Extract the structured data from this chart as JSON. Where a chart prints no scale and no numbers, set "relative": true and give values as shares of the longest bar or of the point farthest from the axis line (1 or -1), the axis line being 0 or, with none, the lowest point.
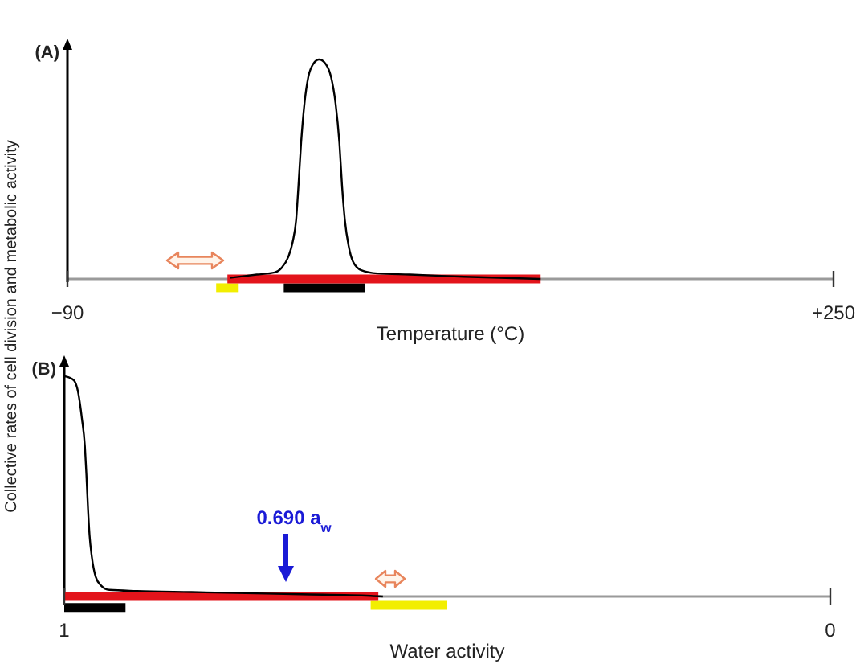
{
  "chart_data": [
    {
      "type": "line",
      "title": "(A)",
      "xlabel": "Temperature (°C)",
      "ylabel": "Collective rates of cell division and metabolic activity",
      "relative": true,
      "marker": "none",
      "series": [
        {
          "color": "#000000",
          "x": [
            -18,
            -6,
            2,
            5,
            8,
            10,
            11.5,
            12.5,
            13.7,
            15.2,
            16.9,
            19.1,
            21.7,
            24.6,
            27,
            29,
            30.7,
            31.9,
            33.1,
            34.8,
            36.7,
            40.4,
            47.6,
            62,
            86,
            120
          ],
          "values": [
            0.005,
            0.02,
            0.03,
            0.05,
            0.1,
            0.17,
            0.27,
            0.42,
            0.62,
            0.8,
            0.92,
            0.98,
            1,
            0.98,
            0.92,
            0.8,
            0.62,
            0.42,
            0.27,
            0.15,
            0.08,
            0.04,
            0.025,
            0.02,
            0.01,
            0
          ]
        },
        {
          "color": "#e3141b",
          "x": [
            -19,
            120
          ],
          "values": [
            0,
            0
          ]
        },
        {
          "color": "#000000",
          "x": [
            6,
            42
          ],
          "values": [
            -0.04,
            -0.04
          ]
        },
        {
          "color": "#f2ee00",
          "x": [
            -24,
            -14
          ],
          "values": [
            -0.04,
            -0.04
          ]
        }
      ],
      "xlim": [
        -90,
        250
      ],
      "xticks": [
        {
          "value": -90,
          "label": "−90"
        },
        {
          "value": 250,
          "label": "+250"
        }
      ]
    },
    {
      "type": "line",
      "title": "(B)",
      "xlabel": "Water activity",
      "relative": true,
      "marker": "none",
      "series": [
        {
          "color": "#000000",
          "x": [
            1,
            0.994,
            0.987,
            0.982,
            0.977,
            0.973,
            0.971,
            0.969,
            0.967,
            0.964,
            0.959,
            0.952,
            0.941,
            0.905,
            0.834,
            0.763,
            0.691,
            0.6,
            0.584
          ],
          "values": [
            1,
            0.995,
            0.98,
            0.93,
            0.81,
            0.68,
            0.55,
            0.4,
            0.28,
            0.18,
            0.09,
            0.05,
            0.03,
            0.025,
            0.02,
            0.015,
            0.01,
            0.003,
            0
          ]
        },
        {
          "color": "#e3141b",
          "x": [
            1,
            0.59
          ],
          "values": [
            0,
            0
          ]
        },
        {
          "color": "#000000",
          "x": [
            1,
            0.92
          ],
          "values": [
            -0.05,
            -0.05
          ]
        },
        {
          "color": "#f2ee00",
          "x": [
            0.6,
            0.5
          ],
          "values": [
            -0.04,
            -0.04
          ]
        }
      ],
      "xlim": [
        1,
        0
      ],
      "xticks": [
        1,
        0
      ],
      "annotations": [
        "0.690 a$_{w}$"
      ]
    }
  ]
}
